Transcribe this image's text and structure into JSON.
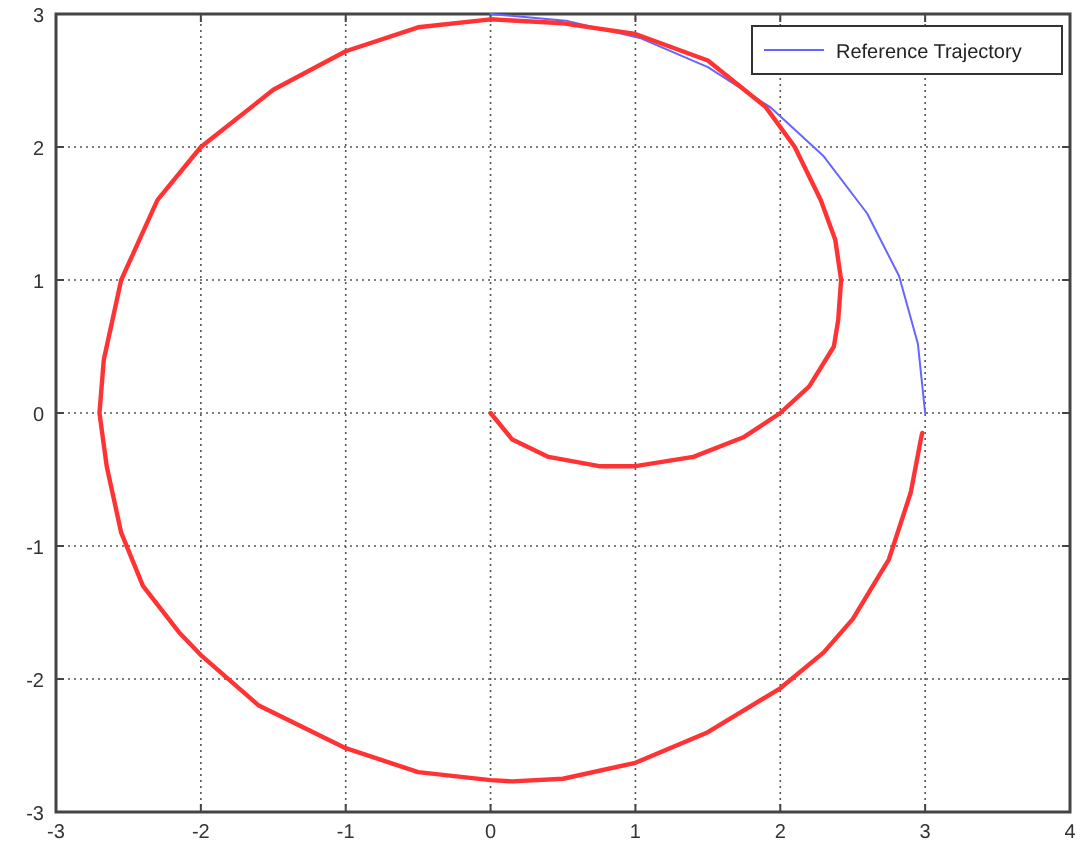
{
  "chart_data": {
    "type": "line",
    "xlim": [
      -3,
      4
    ],
    "ylim": [
      -3,
      3
    ],
    "xticks": [
      -3,
      -2,
      -1,
      0,
      1,
      2,
      3,
      4
    ],
    "yticks": [
      -3,
      -2,
      -1,
      0,
      1,
      2,
      3
    ],
    "grid": true,
    "legend": "top right",
    "marker": "none",
    "line_style": "solid",
    "series": [
      {
        "name": "Reference Trajectory",
        "color": "#6666ff",
        "x": [
          0,
          0.52,
          1.03,
          1.5,
          1.93,
          2.3,
          2.6,
          2.82,
          2.95,
          3
        ],
        "values": [
          3,
          2.95,
          2.82,
          2.6,
          2.3,
          1.93,
          1.5,
          1.03,
          0.52,
          0
        ]
      },
      {
        "color": "#ff3333",
        "x": [
          0,
          0.15,
          0.4,
          0.75,
          1,
          1.4,
          1.75,
          2,
          2.2,
          2.37,
          2.4,
          2.42,
          2.38,
          2.28,
          2.1,
          1.9,
          1.5,
          1,
          0.5,
          0,
          -0.5,
          -1,
          -1.5,
          -2,
          -2.3,
          -2.55,
          -2.67,
          -2.7,
          -2.65,
          -2.55,
          -2.4,
          -2.15,
          -2,
          -1.6,
          -1,
          -0.5,
          0,
          0.15,
          0.5,
          1,
          1.5,
          2,
          2.3,
          2.5,
          2.75,
          2.9,
          2.97,
          2.98
        ],
        "values": [
          0,
          -0.2,
          -0.33,
          -0.4,
          -0.4,
          -0.33,
          -0.18,
          0,
          0.2,
          0.5,
          0.7,
          1,
          1.3,
          1.6,
          2,
          2.3,
          2.65,
          2.85,
          2.93,
          2.96,
          2.9,
          2.72,
          2.43,
          2,
          1.6,
          1,
          0.4,
          0,
          -0.4,
          -0.9,
          -1.3,
          -1.65,
          -1.82,
          -2.2,
          -2.52,
          -2.7,
          -2.76,
          -2.77,
          -2.75,
          -2.63,
          -2.4,
          -2.07,
          -1.8,
          -1.55,
          -1.1,
          -0.6,
          -0.2,
          -0.15
        ]
      }
    ]
  }
}
